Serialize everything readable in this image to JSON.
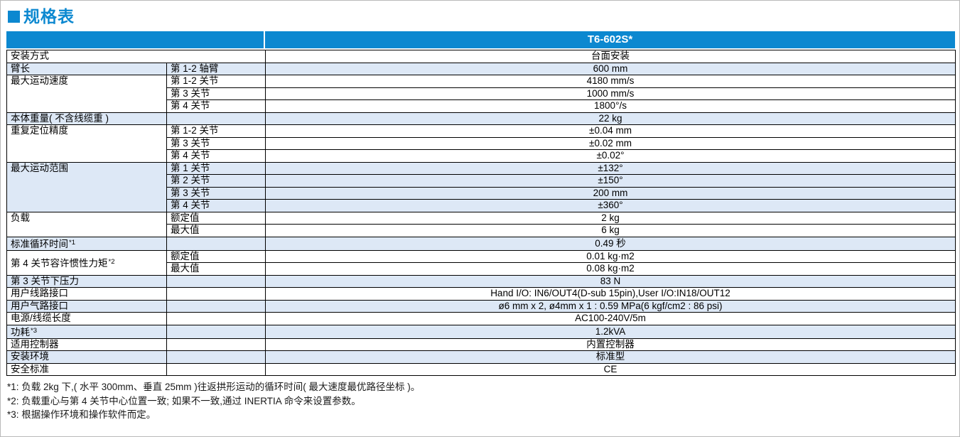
{
  "page": {
    "title": "规格表",
    "accent_color": "#0c88d0",
    "shaded_row_color": "#dde8f6"
  },
  "table": {
    "model_header": "T6-602S*",
    "rows": [
      {
        "label": "安装方式",
        "merge_label": true,
        "value": "台面安装",
        "shaded": false
      },
      {
        "label": "臂长",
        "sub": "第 1-2 轴臂",
        "value": "600 mm",
        "shaded": true
      },
      {
        "label": "最大运动速度",
        "rowspan": 3,
        "sub": "第 1-2 关节",
        "value": "4180 mm/s",
        "shaded": false
      },
      {
        "cont": true,
        "sub": "第 3 关节",
        "value": "1000 mm/s",
        "shaded": false
      },
      {
        "cont": true,
        "sub": "第 4 关节",
        "value": "1800°/s",
        "shaded": false
      },
      {
        "label": "本体重量( 不含线缆重 )",
        "sub": "",
        "value": "22 kg",
        "shaded": true
      },
      {
        "label": "重复定位精度",
        "rowspan": 3,
        "sub": "第 1-2 关节",
        "value": "±0.04 mm",
        "shaded": false
      },
      {
        "cont": true,
        "sub": "第 3 关节",
        "value": "±0.02 mm",
        "shaded": false
      },
      {
        "cont": true,
        "sub": "第 4 关节",
        "value": "±0.02°",
        "shaded": false
      },
      {
        "label": "最大运动范围",
        "rowspan": 4,
        "sub": "第 1 关节",
        "value": "±132°",
        "shaded": true
      },
      {
        "cont": true,
        "sub": "第 2 关节",
        "value": "±150°",
        "shaded": true
      },
      {
        "cont": true,
        "sub": "第 3 关节",
        "value": "200 mm",
        "shaded": true
      },
      {
        "cont": true,
        "sub": "第 4 关节",
        "value": "±360°",
        "shaded": true
      },
      {
        "label": "负载",
        "rowspan": 2,
        "sub": "额定值",
        "value": "2 kg",
        "shaded": false
      },
      {
        "cont": true,
        "sub": "最大值",
        "value": "6 kg",
        "shaded": false
      },
      {
        "label": "标准循环时间",
        "sup": "*1",
        "sub": "",
        "value": "0.49 秒",
        "shaded": true
      },
      {
        "label": "第 4 关节容许惯性力矩",
        "sup": "*2",
        "rowspan": 2,
        "valign": "middle",
        "sub": "额定值",
        "value": "0.01 kg·m2",
        "shaded": false
      },
      {
        "cont": true,
        "sub": "最大值",
        "value": "0.08 kg·m2",
        "shaded": false
      },
      {
        "label": "第 3 关节下压力",
        "sub": "",
        "value": "83 N",
        "shaded": true
      },
      {
        "label": "用户线路接口",
        "sub": "",
        "value": "Hand I/O: IN6/OUT4(D-sub 15pin),User I/O:IN18/OUT12",
        "shaded": false
      },
      {
        "label": "用户气路接口",
        "sub": "",
        "value": "ø6 mm x 2, ø4mm x 1 : 0.59 MPa(6 kgf/cm2 : 86 psi)",
        "shaded": true
      },
      {
        "label": "电源/线缆长度",
        "sub": "",
        "value": "AC100-240V/5m",
        "shaded": false
      },
      {
        "label": "功耗",
        "sup": "*3",
        "sub": "",
        "value": "1.2kVA",
        "shaded": true
      },
      {
        "label": "适用控制器",
        "sub": "",
        "value": "内置控制器",
        "shaded": false
      },
      {
        "label": "安装环境",
        "sub": "",
        "value": "标准型",
        "shaded": true
      },
      {
        "label": "安全标准",
        "sub": "",
        "value": "CE",
        "shaded": false
      }
    ]
  },
  "footnotes": [
    "*1: 负载 2kg 下,( 水平 300mm、垂直 25mm )往返拱形运动的循环时间( 最大速度最优路径坐标 )。",
    "*2: 负载重心与第 4 关节中心位置一致; 如果不一致,通过 INERTIA 命令来设置参数。",
    "*3: 根据操作环境和操作软件而定。"
  ]
}
